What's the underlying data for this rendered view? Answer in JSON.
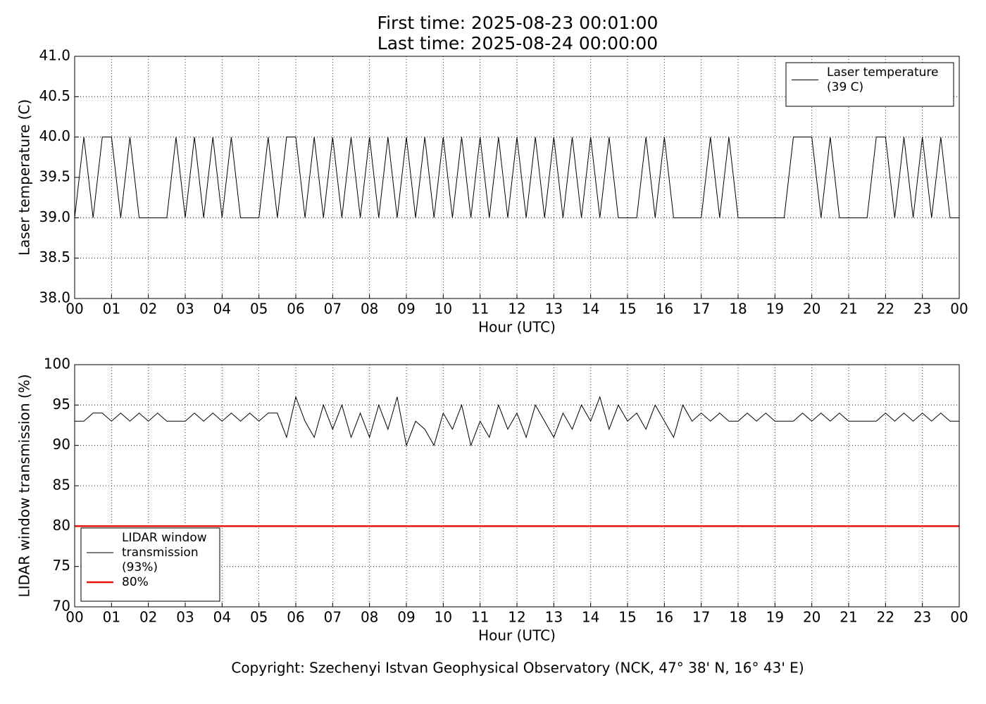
{
  "title_lines": [
    "First time: 2025-08-23 00:01:00",
    "Last time: 2025-08-24 00:00:00"
  ],
  "copyright": "Copyright: Szechenyi Istvan Geophysical Observatory (NCK, 47° 38' N, 16° 43' E)",
  "chart_data": [
    {
      "type": "line",
      "x_label": "Hour (UTC)",
      "y_label": "Laser temperature (C)",
      "grid": true,
      "legend": "upper right",
      "xlim": [
        0,
        24
      ],
      "ylim": [
        38,
        41
      ],
      "xticks": [
        {
          "value": 0,
          "label": "00"
        },
        {
          "value": 1,
          "label": "01"
        },
        {
          "value": 2,
          "label": "02"
        },
        {
          "value": 3,
          "label": "03"
        },
        {
          "value": 4,
          "label": "04"
        },
        {
          "value": 5,
          "label": "05"
        },
        {
          "value": 6,
          "label": "06"
        },
        {
          "value": 7,
          "label": "07"
        },
        {
          "value": 8,
          "label": "08"
        },
        {
          "value": 9,
          "label": "09"
        },
        {
          "value": 10,
          "label": "10"
        },
        {
          "value": 11,
          "label": "11"
        },
        {
          "value": 12,
          "label": "12"
        },
        {
          "value": 13,
          "label": "13"
        },
        {
          "value": 14,
          "label": "14"
        },
        {
          "value": 15,
          "label": "15"
        },
        {
          "value": 16,
          "label": "16"
        },
        {
          "value": 17,
          "label": "17"
        },
        {
          "value": 18,
          "label": "18"
        },
        {
          "value": 19,
          "label": "19"
        },
        {
          "value": 20,
          "label": "20"
        },
        {
          "value": 21,
          "label": "21"
        },
        {
          "value": 22,
          "label": "22"
        },
        {
          "value": 23,
          "label": "23"
        },
        {
          "value": 24,
          "label": "00"
        }
      ],
      "yticks": [
        {
          "value": 38,
          "label": "38.0"
        },
        {
          "value": 38.5,
          "label": "38.5"
        },
        {
          "value": 39,
          "label": "39.0"
        },
        {
          "value": 39.5,
          "label": "39.5"
        },
        {
          "value": 40,
          "label": "40.0"
        },
        {
          "value": 40.5,
          "label": "40.5"
        },
        {
          "value": 41,
          "label": "41.0"
        }
      ],
      "series": [
        {
          "name": "Laser temperature\n(39 C)",
          "color": "#000000",
          "width": 1,
          "x": [
            0,
            0.25,
            0.5,
            0.75,
            1,
            1.25,
            1.5,
            1.75,
            2,
            2.25,
            2.5,
            2.75,
            3,
            3.25,
            3.5,
            3.75,
            4,
            4.25,
            4.5,
            4.75,
            5,
            5.25,
            5.5,
            5.75,
            6,
            6.25,
            6.5,
            6.75,
            7,
            7.25,
            7.5,
            7.75,
            8,
            8.25,
            8.5,
            8.75,
            9,
            9.25,
            9.5,
            9.75,
            10,
            10.25,
            10.5,
            10.75,
            11,
            11.25,
            11.5,
            11.75,
            12,
            12.25,
            12.5,
            12.75,
            13,
            13.25,
            13.5,
            13.75,
            14,
            14.25,
            14.5,
            14.75,
            15,
            15.25,
            15.5,
            15.75,
            16,
            16.25,
            16.5,
            16.75,
            17,
            17.25,
            17.5,
            17.75,
            18,
            18.25,
            18.5,
            18.75,
            19,
            19.25,
            19.5,
            19.75,
            20,
            20.25,
            20.5,
            20.75,
            21,
            21.25,
            21.5,
            21.75,
            22,
            22.25,
            22.5,
            22.75,
            23,
            23.25,
            23.5,
            23.75,
            24
          ],
          "values": [
            39,
            40,
            39,
            40,
            40,
            39,
            40,
            39,
            39,
            39,
            39,
            40,
            39,
            40,
            39,
            40,
            39,
            40,
            39,
            39,
            39,
            40,
            39,
            40,
            40,
            39,
            40,
            39,
            40,
            39,
            40,
            39,
            40,
            39,
            40,
            39,
            40,
            39,
            40,
            39,
            40,
            39,
            40,
            39,
            40,
            39,
            40,
            39,
            40,
            39,
            40,
            39,
            40,
            39,
            40,
            39,
            40,
            39,
            40,
            39,
            39,
            39,
            40,
            39,
            40,
            39,
            39,
            39,
            39,
            40,
            39,
            40,
            39,
            39,
            39,
            39,
            39,
            39,
            40,
            40,
            40,
            39,
            40,
            39,
            39,
            39,
            39,
            40,
            40,
            39,
            40,
            39,
            40,
            39,
            40,
            39,
            39
          ]
        }
      ]
    },
    {
      "type": "line",
      "x_label": "Hour (UTC)",
      "y_label": "LIDAR window transmission (%)",
      "grid": true,
      "legend": "lower left",
      "xlim": [
        0,
        24
      ],
      "ylim": [
        70,
        100
      ],
      "xticks": [
        {
          "value": 0,
          "label": "00"
        },
        {
          "value": 1,
          "label": "01"
        },
        {
          "value": 2,
          "label": "02"
        },
        {
          "value": 3,
          "label": "03"
        },
        {
          "value": 4,
          "label": "04"
        },
        {
          "value": 5,
          "label": "05"
        },
        {
          "value": 6,
          "label": "06"
        },
        {
          "value": 7,
          "label": "07"
        },
        {
          "value": 8,
          "label": "08"
        },
        {
          "value": 9,
          "label": "09"
        },
        {
          "value": 10,
          "label": "10"
        },
        {
          "value": 11,
          "label": "11"
        },
        {
          "value": 12,
          "label": "12"
        },
        {
          "value": 13,
          "label": "13"
        },
        {
          "value": 14,
          "label": "14"
        },
        {
          "value": 15,
          "label": "15"
        },
        {
          "value": 16,
          "label": "16"
        },
        {
          "value": 17,
          "label": "17"
        },
        {
          "value": 18,
          "label": "18"
        },
        {
          "value": 19,
          "label": "19"
        },
        {
          "value": 20,
          "label": "20"
        },
        {
          "value": 21,
          "label": "21"
        },
        {
          "value": 22,
          "label": "22"
        },
        {
          "value": 23,
          "label": "23"
        },
        {
          "value": 24,
          "label": "00"
        }
      ],
      "yticks": [
        70,
        75,
        80,
        85,
        90,
        95,
        100
      ],
      "series": [
        {
          "name": "LIDAR window\ntransmission\n(93%)",
          "color": "#000000",
          "width": 1,
          "x": [
            0,
            0.25,
            0.5,
            0.75,
            1,
            1.25,
            1.5,
            1.75,
            2,
            2.25,
            2.5,
            2.75,
            3,
            3.25,
            3.5,
            3.75,
            4,
            4.25,
            4.5,
            4.75,
            5,
            5.25,
            5.5,
            5.75,
            6,
            6.25,
            6.5,
            6.75,
            7,
            7.25,
            7.5,
            7.75,
            8,
            8.25,
            8.5,
            8.75,
            9,
            9.25,
            9.5,
            9.75,
            10,
            10.25,
            10.5,
            10.75,
            11,
            11.25,
            11.5,
            11.75,
            12,
            12.25,
            12.5,
            12.75,
            13,
            13.25,
            13.5,
            13.75,
            14,
            14.25,
            14.5,
            14.75,
            15,
            15.25,
            15.5,
            15.75,
            16,
            16.25,
            16.5,
            16.75,
            17,
            17.25,
            17.5,
            17.75,
            18,
            18.25,
            18.5,
            18.75,
            19,
            19.25,
            19.5,
            19.75,
            20,
            20.25,
            20.5,
            20.75,
            21,
            21.25,
            21.5,
            21.75,
            22,
            22.25,
            22.5,
            22.75,
            23,
            23.25,
            23.5,
            23.75,
            24
          ],
          "values": [
            93,
            93,
            94,
            94,
            93,
            94,
            93,
            94,
            93,
            94,
            93,
            93,
            93,
            94,
            93,
            94,
            93,
            94,
            93,
            94,
            93,
            94,
            94,
            91,
            96,
            93,
            91,
            95,
            92,
            95,
            91,
            94,
            91,
            95,
            92,
            96,
            90,
            93,
            92,
            90,
            94,
            92,
            95,
            90,
            93,
            91,
            95,
            92,
            94,
            91,
            95,
            93,
            91,
            94,
            92,
            95,
            93,
            96,
            92,
            95,
            93,
            94,
            92,
            95,
            93,
            91,
            95,
            93,
            94,
            93,
            94,
            93,
            93,
            94,
            93,
            94,
            93,
            93,
            93,
            94,
            93,
            94,
            93,
            94,
            93,
            93,
            93,
            93,
            94,
            93,
            94,
            93,
            94,
            93,
            94,
            93,
            93
          ]
        },
        {
          "name": "80%",
          "color": "#e8120c",
          "width": 2.5,
          "x": [
            0,
            24
          ],
          "values": [
            80,
            80
          ]
        }
      ]
    }
  ]
}
